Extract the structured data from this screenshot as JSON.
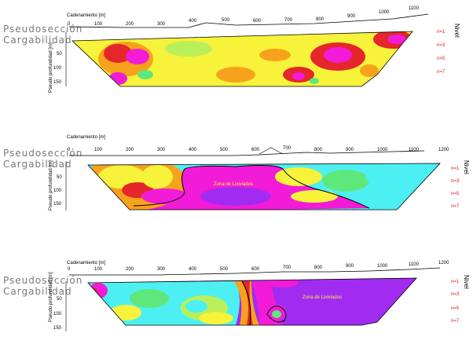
{
  "common": {
    "side_label_line1": "Pseudosección",
    "side_label_line2": "Cargabilidad",
    "x_axis_title": "Cadenamiento [m]",
    "y_axis_title": "Pseudo profundidad [m]",
    "nivel_label": "Nivel",
    "n_levels": [
      "n=1",
      "n=3",
      "n=5",
      "n=7"
    ],
    "depth_ticks": [
      "50",
      "100",
      "150"
    ]
  },
  "panels": [
    {
      "x_ticks": [
        "0",
        "100",
        "200",
        "300",
        "400",
        "500",
        "600",
        "700",
        "800",
        "900",
        "1000",
        "1100"
      ],
      "zone_label": ""
    },
    {
      "x_ticks": [
        "0",
        "100",
        "200",
        "300",
        "400",
        "500",
        "600",
        "700",
        "800",
        "900",
        "1000",
        "1100",
        "1200"
      ],
      "zone_label": "Zona de Lixiviados"
    },
    {
      "x_ticks": [
        "0",
        "100",
        "200",
        "300",
        "400",
        "500",
        "600",
        "700",
        "800",
        "900",
        "1000",
        "1100",
        "1200"
      ],
      "zone_label": "Zona de Lixiviados"
    }
  ],
  "colors": {
    "yellow": "#f7f23a",
    "orange": "#f7a21c",
    "red": "#e5262a",
    "magenta": "#f21bd8",
    "purple": "#a22bf2",
    "cyan": "#4df0f2",
    "green": "#5ee87c",
    "lightgreen": "#b9f05a",
    "n_label_red": "#dd1111"
  }
}
